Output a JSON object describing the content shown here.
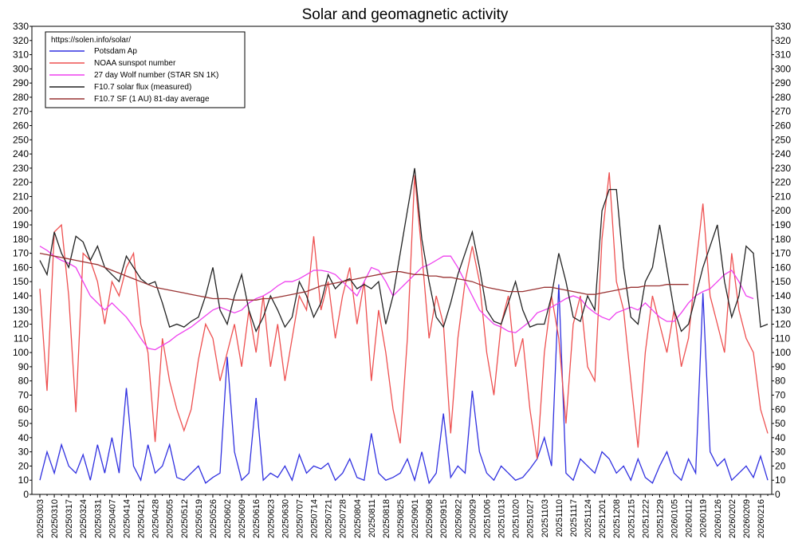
{
  "chart_data": {
    "type": "line",
    "title": "Solar and geomagnetic activity",
    "legend_title": "https://solen.info/solar/",
    "legend": "upper left",
    "grid": false,
    "categories": [
      "20250303",
      null,
      "20250310",
      null,
      "20250317",
      null,
      "20250324",
      null,
      "20250331",
      null,
      "20250407",
      null,
      "20250414",
      null,
      "20250421",
      null,
      "20250428",
      null,
      "20250505",
      null,
      "20250512",
      null,
      "20250519",
      null,
      "20250526",
      null,
      "20250602",
      null,
      "20250609",
      null,
      "20250616",
      null,
      "20250623",
      null,
      "20250630",
      null,
      "20250707",
      null,
      "20250714",
      null,
      "20250721",
      null,
      "20250728",
      null,
      "20250804",
      null,
      "20250811",
      null,
      "20250818",
      null,
      "20250825",
      null,
      "20250901",
      null,
      "20250908",
      null,
      "20250915",
      null,
      "20250922",
      null,
      "20250929",
      null,
      "20251006",
      null,
      "20251013",
      null,
      "20251020",
      null,
      "20251027",
      null,
      "20251103",
      null,
      "20251110",
      null,
      "20251117",
      null,
      "20251124",
      null,
      "20251201",
      null,
      "20251208",
      null,
      "20251215",
      null,
      "20251222",
      null,
      "20251229",
      null,
      "20260105",
      null,
      "20260112",
      null,
      "20260119",
      null,
      "20260126",
      null,
      "20260202",
      null,
      "20260209",
      null,
      "20260216",
      null
    ],
    "ylim": [
      0,
      330
    ],
    "yticks": [
      0,
      10,
      20,
      30,
      40,
      50,
      60,
      70,
      80,
      90,
      100,
      110,
      120,
      130,
      140,
      150,
      160,
      170,
      180,
      190,
      200,
      210,
      220,
      230,
      240,
      250,
      260,
      270,
      280,
      290,
      300,
      310,
      320,
      330
    ],
    "series": [
      {
        "name": "Potsdam Ap",
        "color": "#3030e0",
        "values": [
          10,
          30,
          15,
          35,
          20,
          15,
          28,
          10,
          35,
          15,
          40,
          15,
          75,
          20,
          10,
          35,
          15,
          20,
          35,
          12,
          10,
          15,
          20,
          8,
          12,
          15,
          97,
          30,
          10,
          15,
          68,
          10,
          15,
          12,
          20,
          10,
          28,
          15,
          20,
          18,
          22,
          10,
          15,
          25,
          12,
          10,
          43,
          15,
          10,
          12,
          15,
          25,
          10,
          30,
          8,
          15,
          57,
          12,
          20,
          15,
          73,
          30,
          15,
          10,
          20,
          15,
          10,
          12,
          18,
          25,
          40,
          20,
          148,
          15,
          10,
          25,
          20,
          15,
          30,
          25,
          15,
          20,
          10,
          25,
          12,
          8,
          20,
          30,
          15,
          10,
          25,
          15,
          142,
          30,
          20,
          25,
          10,
          15,
          20,
          12,
          27,
          10
        ]
      },
      {
        "name": "NOAA sunspot number",
        "color": "#ee5050",
        "values": [
          145,
          73,
          185,
          190,
          140,
          58,
          170,
          165,
          150,
          120,
          150,
          140,
          160,
          170,
          120,
          100,
          37,
          110,
          80,
          60,
          45,
          60,
          95,
          120,
          110,
          80,
          100,
          120,
          90,
          130,
          100,
          140,
          90,
          120,
          80,
          110,
          140,
          130,
          182,
          130,
          150,
          110,
          140,
          160,
          120,
          150,
          80,
          130,
          100,
          60,
          36,
          110,
          225,
          170,
          110,
          140,
          120,
          43,
          110,
          150,
          175,
          150,
          100,
          70,
          120,
          140,
          90,
          110,
          60,
          25,
          100,
          140,
          110,
          50,
          120,
          140,
          90,
          80,
          180,
          227,
          150,
          130,
          80,
          33,
          100,
          140,
          120,
          100,
          130,
          90,
          110,
          160,
          205,
          140,
          120,
          100,
          170,
          130,
          110,
          100,
          60,
          43
        ]
      },
      {
        "name": "27 day Wolf number (STAR SN 1K)",
        "color": "#ee40ee",
        "values": [
          175,
          172,
          168,
          165,
          163,
          160,
          150,
          140,
          135,
          130,
          135,
          130,
          125,
          118,
          110,
          103,
          102,
          105,
          108,
          112,
          115,
          118,
          122,
          126,
          130,
          132,
          130,
          128,
          130,
          135,
          138,
          140,
          143,
          147,
          150,
          150,
          152,
          155,
          158,
          158,
          157,
          155,
          150,
          145,
          140,
          150,
          160,
          158,
          150,
          140,
          145,
          150,
          155,
          160,
          162,
          165,
          168,
          168,
          160,
          150,
          140,
          130,
          125,
          120,
          118,
          115,
          114,
          118,
          122,
          128,
          130,
          132,
          135,
          138,
          140,
          138,
          132,
          128,
          125,
          123,
          128,
          130,
          132,
          130,
          135,
          130,
          125,
          122,
          122,
          128,
          135,
          140,
          143,
          145,
          150,
          155,
          158,
          150,
          140,
          138,
          null,
          null
        ]
      },
      {
        "name": "F10.7 solar flux (measured)",
        "color": "#222222",
        "values": [
          165,
          155,
          185,
          170,
          160,
          182,
          178,
          165,
          175,
          160,
          155,
          150,
          168,
          160,
          152,
          148,
          150,
          135,
          118,
          120,
          118,
          122,
          125,
          140,
          160,
          130,
          120,
          140,
          155,
          130,
          115,
          125,
          140,
          130,
          118,
          125,
          150,
          140,
          125,
          135,
          155,
          145,
          150,
          152,
          145,
          148,
          145,
          150,
          120,
          140,
          170,
          200,
          230,
          180,
          150,
          125,
          118,
          135,
          155,
          170,
          185,
          160,
          130,
          122,
          120,
          135,
          150,
          130,
          118,
          120,
          120,
          140,
          170,
          150,
          125,
          122,
          140,
          130,
          200,
          215,
          215,
          160,
          125,
          120,
          150,
          160,
          190,
          160,
          130,
          115,
          120,
          140,
          160,
          175,
          190,
          150,
          125,
          140,
          175,
          170,
          118,
          120
        ]
      },
      {
        "name": "F10.7 SF (1 AU) 81-day average",
        "color": "#993333",
        "values": [
          170,
          169,
          168,
          167,
          166,
          165,
          164,
          163,
          162,
          160,
          158,
          156,
          154,
          152,
          150,
          148,
          146,
          145,
          144,
          143,
          142,
          141,
          140,
          139,
          138,
          138,
          138,
          137,
          137,
          137,
          137,
          138,
          138,
          139,
          140,
          141,
          142,
          143,
          145,
          147,
          148,
          149,
          150,
          151,
          152,
          153,
          154,
          155,
          156,
          157,
          157,
          156,
          155,
          155,
          154,
          154,
          153,
          153,
          152,
          151,
          150,
          148,
          146,
          145,
          144,
          143,
          143,
          143,
          144,
          145,
          146,
          146,
          145,
          144,
          143,
          142,
          141,
          141,
          142,
          143,
          144,
          145,
          146,
          146,
          147,
          147,
          147,
          148,
          148,
          148,
          148,
          null,
          null,
          null,
          null,
          null,
          null,
          null,
          null,
          null,
          null,
          null
        ]
      }
    ]
  }
}
